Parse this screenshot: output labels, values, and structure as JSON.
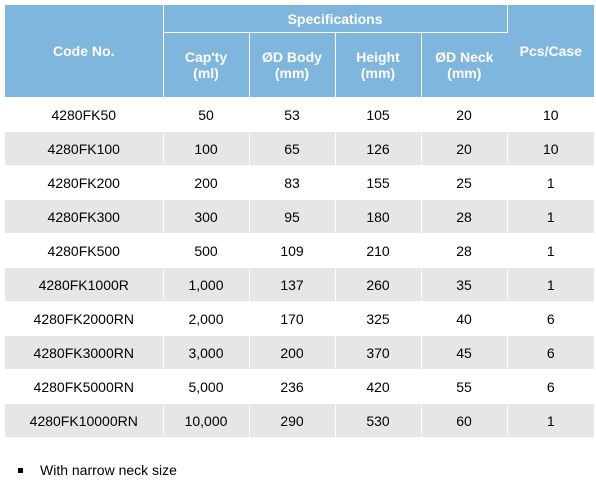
{
  "table": {
    "headers": {
      "code": "Code No.",
      "specifications": "Specifications",
      "capacity": [
        "Cap'ty",
        "(ml)"
      ],
      "body": [
        "ØD Body",
        "(mm)"
      ],
      "height": [
        "Height",
        "(mm)"
      ],
      "neck": [
        "ØD Neck",
        "(mm)"
      ],
      "pcs": "Pcs/Case"
    },
    "rows": [
      [
        "4280FK50",
        "50",
        "53",
        "105",
        "20",
        "10"
      ],
      [
        "4280FK100",
        "100",
        "65",
        "126",
        "20",
        "10"
      ],
      [
        "4280FK200",
        "200",
        "83",
        "155",
        "25",
        "1"
      ],
      [
        "4280FK300",
        "300",
        "95",
        "180",
        "28",
        "1"
      ],
      [
        "4280FK500",
        "500",
        "109",
        "210",
        "28",
        "1"
      ],
      [
        "4280FK1000R",
        "1,000",
        "137",
        "260",
        "35",
        "1"
      ],
      [
        "4280FK2000RN",
        "2,000",
        "170",
        "325",
        "40",
        "6"
      ],
      [
        "4280FK3000RN",
        "3,000",
        "200",
        "370",
        "45",
        "6"
      ],
      [
        "4280FK5000RN",
        "5,000",
        "236",
        "420",
        "55",
        "6"
      ],
      [
        "4280FK10000RN",
        "10,000",
        "290",
        "530",
        "60",
        "1"
      ]
    ]
  },
  "note": {
    "text": "With narrow neck size"
  },
  "colors": {
    "header_bg": "#7fb6dd",
    "row_alt_bg": "#e6e6e6"
  }
}
